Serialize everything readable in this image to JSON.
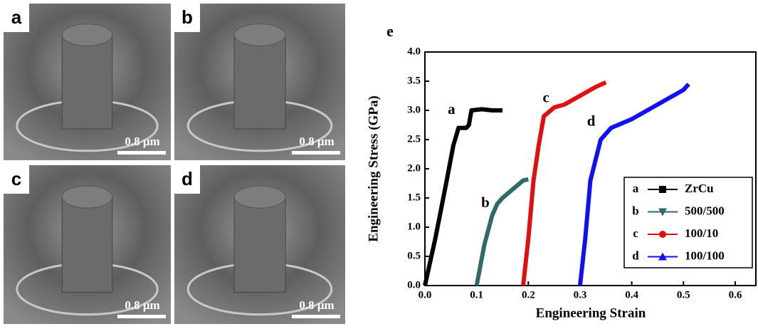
{
  "panels": [
    {
      "label": "a",
      "scale": "0.8 μm"
    },
    {
      "label": "b",
      "scale": "0.8 μm"
    },
    {
      "label": "c",
      "scale": "0.8 μm"
    },
    {
      "label": "d",
      "scale": "0.8 μm"
    }
  ],
  "chart_data": {
    "type": "line",
    "title": "e",
    "x_label": "Engineering Strain",
    "y_label": "Engineering Stress (GPa)",
    "xlim": [
      0,
      0.64
    ],
    "ylim": [
      0,
      4.0
    ],
    "xticks": [
      {
        "value": 0,
        "label": "0.0"
      },
      0.1,
      0.2,
      0.3,
      0.4,
      0.5,
      0.6
    ],
    "yticks": [
      {
        "value": 0,
        "label": "0.0"
      },
      0.5,
      {
        "value": 1,
        "label": "1.0"
      },
      1.5,
      {
        "value": 2,
        "label": "2.0"
      },
      2.5,
      {
        "value": 3,
        "label": "3.0"
      },
      3.5,
      {
        "value": 4,
        "label": "4.0"
      }
    ],
    "series": [
      {
        "name": "ZrCu",
        "tag": "a",
        "color": "#000000",
        "marker": "square",
        "x": [
          0,
          0.02,
          0.04,
          0.055,
          0.065,
          0.08,
          0.085,
          0.09,
          0.11,
          0.13,
          0.15
        ],
        "values": [
          0,
          0.8,
          1.7,
          2.4,
          2.7,
          2.7,
          2.75,
          3.0,
          3.02,
          3.0,
          3.0
        ]
      },
      {
        "name": "500/500",
        "tag": "b",
        "color": "#2f6b66",
        "marker": "triangle-down",
        "x": [
          0.1,
          0.115,
          0.13,
          0.14,
          0.15,
          0.17,
          0.19,
          0.2
        ],
        "values": [
          0,
          0.7,
          1.2,
          1.4,
          1.5,
          1.65,
          1.8,
          1.82
        ]
      },
      {
        "name": "100/10",
        "tag": "c",
        "color": "#e01010",
        "marker": "circle",
        "x": [
          0.19,
          0.2,
          0.21,
          0.22,
          0.23,
          0.25,
          0.27,
          0.3,
          0.33,
          0.35
        ],
        "values": [
          0,
          0.8,
          1.8,
          2.4,
          2.9,
          3.05,
          3.1,
          3.25,
          3.4,
          3.48
        ]
      },
      {
        "name": "100/100",
        "tag": "d",
        "color": "#1010f0",
        "marker": "triangle-up",
        "x": [
          0.3,
          0.31,
          0.32,
          0.34,
          0.36,
          0.4,
          0.45,
          0.5,
          0.51
        ],
        "values": [
          0,
          0.8,
          1.8,
          2.5,
          2.7,
          2.85,
          3.1,
          3.35,
          3.45
        ]
      }
    ]
  }
}
